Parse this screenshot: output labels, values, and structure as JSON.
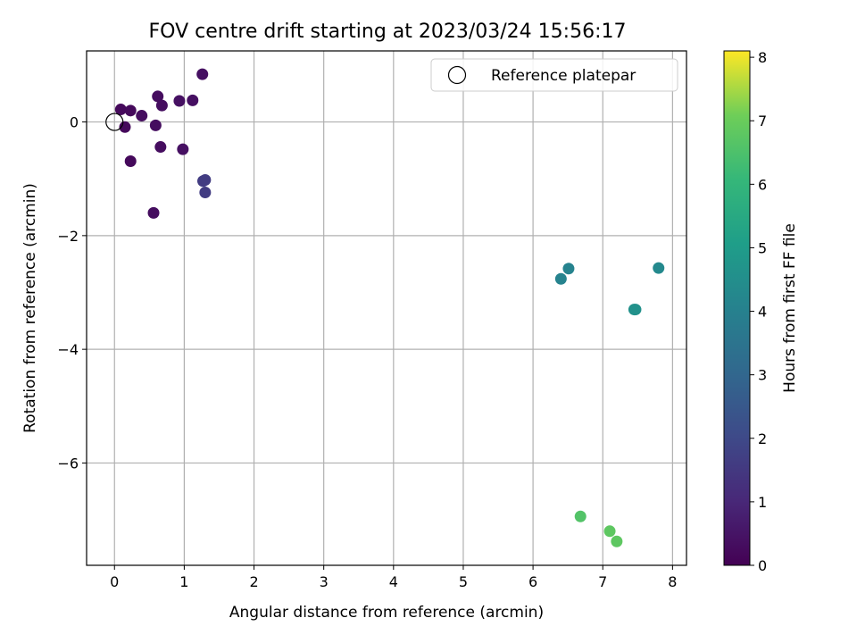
{
  "chart_data": {
    "type": "scatter",
    "title": "FOV centre drift starting at 2023/03/24 15:56:17",
    "xlabel": "Angular distance from reference (arcmin)",
    "ylabel": "Rotation from reference (arcmin)",
    "xlim": [
      -0.4,
      8.2
    ],
    "ylim": [
      -7.8,
      1.25
    ],
    "xticks": [
      0,
      1,
      2,
      3,
      4,
      5,
      6,
      7,
      8
    ],
    "yticks": [
      0,
      -2,
      -4,
      -6
    ],
    "grid": true,
    "legend": {
      "label": "Reference platepar",
      "placement": "top-right",
      "marker": "open-circle"
    },
    "reference_point": {
      "x": 0,
      "y": 0
    },
    "colorbar": {
      "label": "Hours from first FF file",
      "range": [
        0,
        8.1
      ],
      "ticks": [
        0,
        1,
        2,
        3,
        4,
        5,
        6,
        7,
        8
      ],
      "colormap": "viridis"
    },
    "points": [
      {
        "x": 0.09,
        "y": 0.22,
        "hours": 0.2
      },
      {
        "x": 0.15,
        "y": -0.09,
        "hours": 0.2
      },
      {
        "x": 0.23,
        "y": 0.2,
        "hours": 0.2
      },
      {
        "x": 0.23,
        "y": -0.69,
        "hours": 0.2
      },
      {
        "x": 0.39,
        "y": 0.11,
        "hours": 0.3
      },
      {
        "x": 0.56,
        "y": -1.6,
        "hours": 0.3
      },
      {
        "x": 0.59,
        "y": -0.06,
        "hours": 0.3
      },
      {
        "x": 0.62,
        "y": 0.45,
        "hours": 0.3
      },
      {
        "x": 0.66,
        "y": -0.44,
        "hours": 0.3
      },
      {
        "x": 0.68,
        "y": 0.29,
        "hours": 0.3
      },
      {
        "x": 0.93,
        "y": 0.37,
        "hours": 0.4
      },
      {
        "x": 0.98,
        "y": -0.48,
        "hours": 0.4
      },
      {
        "x": 1.12,
        "y": 0.38,
        "hours": 0.4
      },
      {
        "x": 1.26,
        "y": 0.84,
        "hours": 0.4
      },
      {
        "x": 1.27,
        "y": -1.04,
        "hours": 1.6
      },
      {
        "x": 1.3,
        "y": -1.02,
        "hours": 1.6
      },
      {
        "x": 1.3,
        "y": -1.24,
        "hours": 1.6
      },
      {
        "x": 6.4,
        "y": -2.76,
        "hours": 4.1
      },
      {
        "x": 6.51,
        "y": -2.58,
        "hours": 4.1
      },
      {
        "x": 7.8,
        "y": -2.57,
        "hours": 4.3
      },
      {
        "x": 7.45,
        "y": -3.3,
        "hours": 4.6
      },
      {
        "x": 7.47,
        "y": -3.3,
        "hours": 4.6
      },
      {
        "x": 6.68,
        "y": -6.94,
        "hours": 6.6
      },
      {
        "x": 7.1,
        "y": -7.2,
        "hours": 6.8
      },
      {
        "x": 7.2,
        "y": -7.38,
        "hours": 6.8
      }
    ]
  }
}
